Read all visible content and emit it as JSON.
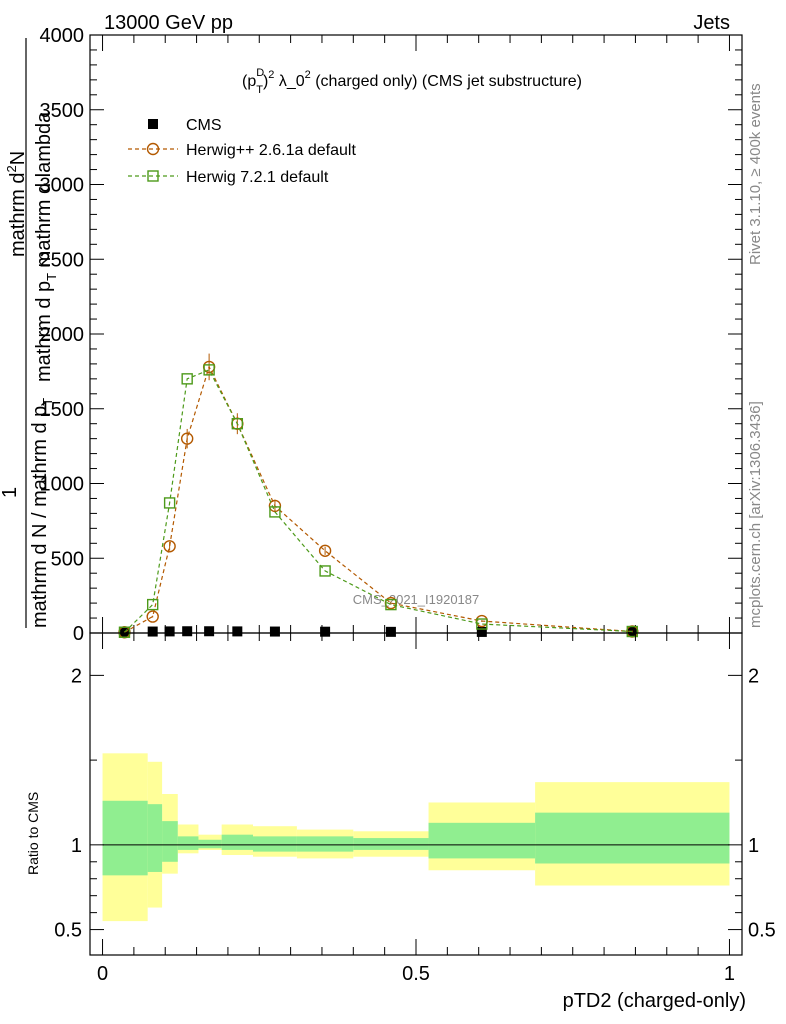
{
  "header": {
    "left": "13000 GeV pp",
    "right": "Jets"
  },
  "side_labels": {
    "rivet": "Rivet 3.1.10, ≥ 400k events",
    "mcplots": "mcplots.cern.ch [arXiv:1306.3436]"
  },
  "watermark": "CMS_2021_I1920187",
  "colors": {
    "cms": "#000000",
    "herwig_pp": "#b35900",
    "herwig_7": "#4d9a1a",
    "band_outer": "#ffff99",
    "band_inner": "#90ee90"
  },
  "chart_data": [
    {
      "type": "line",
      "title_parts": {
        "p": "(p",
        "sup_d": "D",
        "sub_t": "T",
        "close": ")",
        "sup_2": "2",
        "rest": " λ_0",
        "sup_2b": "2",
        "tail": " (charged only) (CMS jet substructure)"
      },
      "ylabel_lines": [
        "mathrm d^{2}N",
        "mathrm d p_{T} mathrm d lambda",
        "1",
        "mathrm d N / mathrm d p_{T}"
      ],
      "ylabel_parts": {
        "outer_top": "mathrm d",
        "outer_top_sup": "2",
        "outer_top_tail": "N",
        "outer_bottom": "mathrm d p",
        "outer_bottom_sub": "T",
        "outer_bottom_tail": " mathrm d lambda",
        "inner_top": "1",
        "inner_bottom": "mathrm d N / mathrm d p",
        "inner_bottom_sub": "T"
      },
      "xlim": [
        -0.02,
        1.02
      ],
      "ylim": [
        0,
        4000
      ],
      "yticks": [
        "0",
        "500",
        "1000",
        "1500",
        "2000",
        "2500",
        "3000",
        "3500",
        "4000"
      ],
      "yticks_values": [
        0,
        500,
        1000,
        1500,
        2000,
        2500,
        3000,
        3500,
        4000
      ],
      "legend_position": "top-left",
      "series": [
        {
          "name": "CMS",
          "marker": "square-filled",
          "x": [
            0.035,
            0.08,
            0.107,
            0.135,
            0.17,
            0.215,
            0.275,
            0.355,
            0.46,
            0.605,
            0.845
          ],
          "y": [
            2,
            3,
            4,
            5,
            5,
            4,
            3,
            2,
            1,
            0.5,
            0.2
          ]
        },
        {
          "name": "Herwig++ 2.6.1a default",
          "marker": "circle-open",
          "x": [
            0.035,
            0.08,
            0.107,
            0.135,
            0.17,
            0.215,
            0.275,
            0.355,
            0.46,
            0.605,
            0.845
          ],
          "y": [
            5,
            110,
            580,
            1300,
            1780,
            1400,
            850,
            550,
            200,
            80,
            10
          ]
        },
        {
          "name": "Herwig 7.2.1 default",
          "marker": "square-open",
          "x": [
            0.035,
            0.08,
            0.107,
            0.135,
            0.17,
            0.215,
            0.275,
            0.355,
            0.46,
            0.605,
            0.845
          ],
          "y": [
            5,
            190,
            870,
            1700,
            1760,
            1400,
            810,
            415,
            190,
            60,
            10
          ]
        }
      ]
    },
    {
      "type": "area",
      "ylabel": "Ratio to CMS",
      "xlabel": "pTD2 (charged-only)",
      "xlim": [
        -0.02,
        1.02
      ],
      "ylim": [
        0.35,
        2.25
      ],
      "xticks": [
        "0",
        "0.5",
        "1"
      ],
      "xticks_values": [
        0,
        0.5,
        1
      ],
      "yticks": [
        "0.5",
        "1",
        "2"
      ],
      "yticks_values": [
        0.5,
        1,
        2
      ],
      "reference_line": 1,
      "bands": {
        "edges": [
          0,
          0.072,
          0.095,
          0.12,
          0.153,
          0.19,
          0.24,
          0.31,
          0.4,
          0.52,
          0.69,
          1.0
        ],
        "outer_low": [
          0.55,
          0.63,
          0.83,
          0.95,
          0.97,
          0.94,
          0.93,
          0.92,
          0.93,
          0.85,
          0.76
        ],
        "outer_high": [
          1.54,
          1.49,
          1.3,
          1.12,
          1.06,
          1.12,
          1.11,
          1.09,
          1.08,
          1.25,
          1.37
        ],
        "inner_low": [
          0.82,
          0.84,
          0.9,
          0.97,
          0.98,
          0.97,
          0.96,
          0.96,
          0.97,
          0.92,
          0.89
        ],
        "inner_high": [
          1.26,
          1.24,
          1.14,
          1.05,
          1.03,
          1.06,
          1.05,
          1.05,
          1.04,
          1.13,
          1.19
        ]
      }
    }
  ]
}
